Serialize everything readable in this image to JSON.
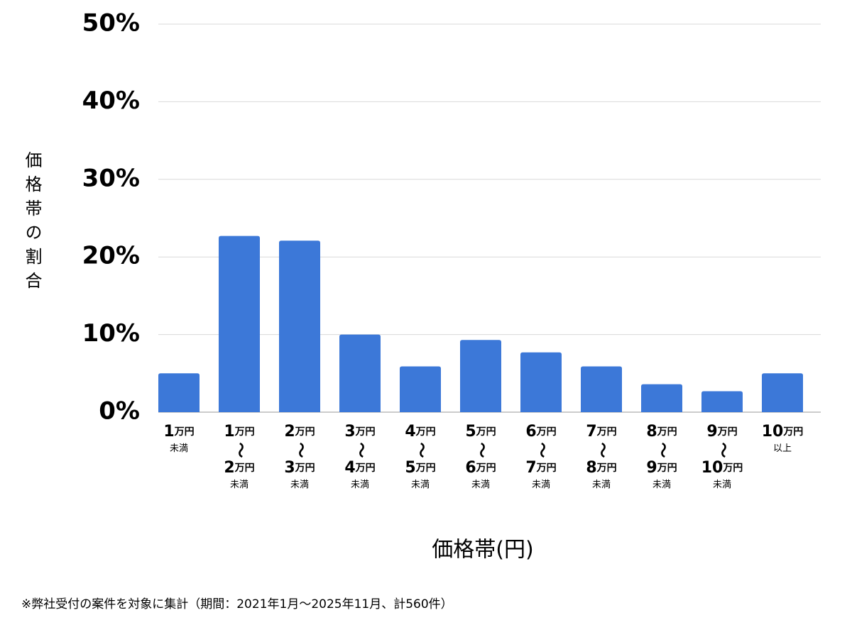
{
  "chart_data": {
    "type": "bar",
    "y_label": "価格帯の割合",
    "x_label": "価格帯(円)",
    "footnote": "※弊社受付の案件を対象に集計（期間：2021年1月〜2025年11月、計560件）",
    "categories": [
      [
        "1万円",
        "未満"
      ],
      [
        "1万円",
        "〜",
        "2万円",
        "未満"
      ],
      [
        "2万円",
        "〜",
        "3万円",
        "未満"
      ],
      [
        "3万円",
        "〜",
        "4万円",
        "未満"
      ],
      [
        "4万円",
        "〜",
        "5万円",
        "未満"
      ],
      [
        "5万円",
        "〜",
        "6万円",
        "未満"
      ],
      [
        "6万円",
        "〜",
        "7万円",
        "未満"
      ],
      [
        "7万円",
        "〜",
        "8万円",
        "未満"
      ],
      [
        "8万円",
        "〜",
        "9万円",
        "未満"
      ],
      [
        "9万円",
        "〜",
        "10万円",
        "未満"
      ],
      [
        "10万円",
        "以上"
      ]
    ],
    "values": [
      5.0,
      22.7,
      22.1,
      10.0,
      5.9,
      9.3,
      7.7,
      5.9,
      3.6,
      2.7,
      5.0
    ],
    "color": "#3c78d8",
    "ylim": [
      0,
      50
    ],
    "yticks": [
      {
        "value": 0,
        "label": "0%"
      },
      {
        "value": 10,
        "label": "10%"
      },
      {
        "value": 20,
        "label": "20%"
      },
      {
        "value": 30,
        "label": "30%"
      },
      {
        "value": 40,
        "label": "40%"
      },
      {
        "value": 50,
        "label": "50%"
      }
    ],
    "grid": true
  }
}
